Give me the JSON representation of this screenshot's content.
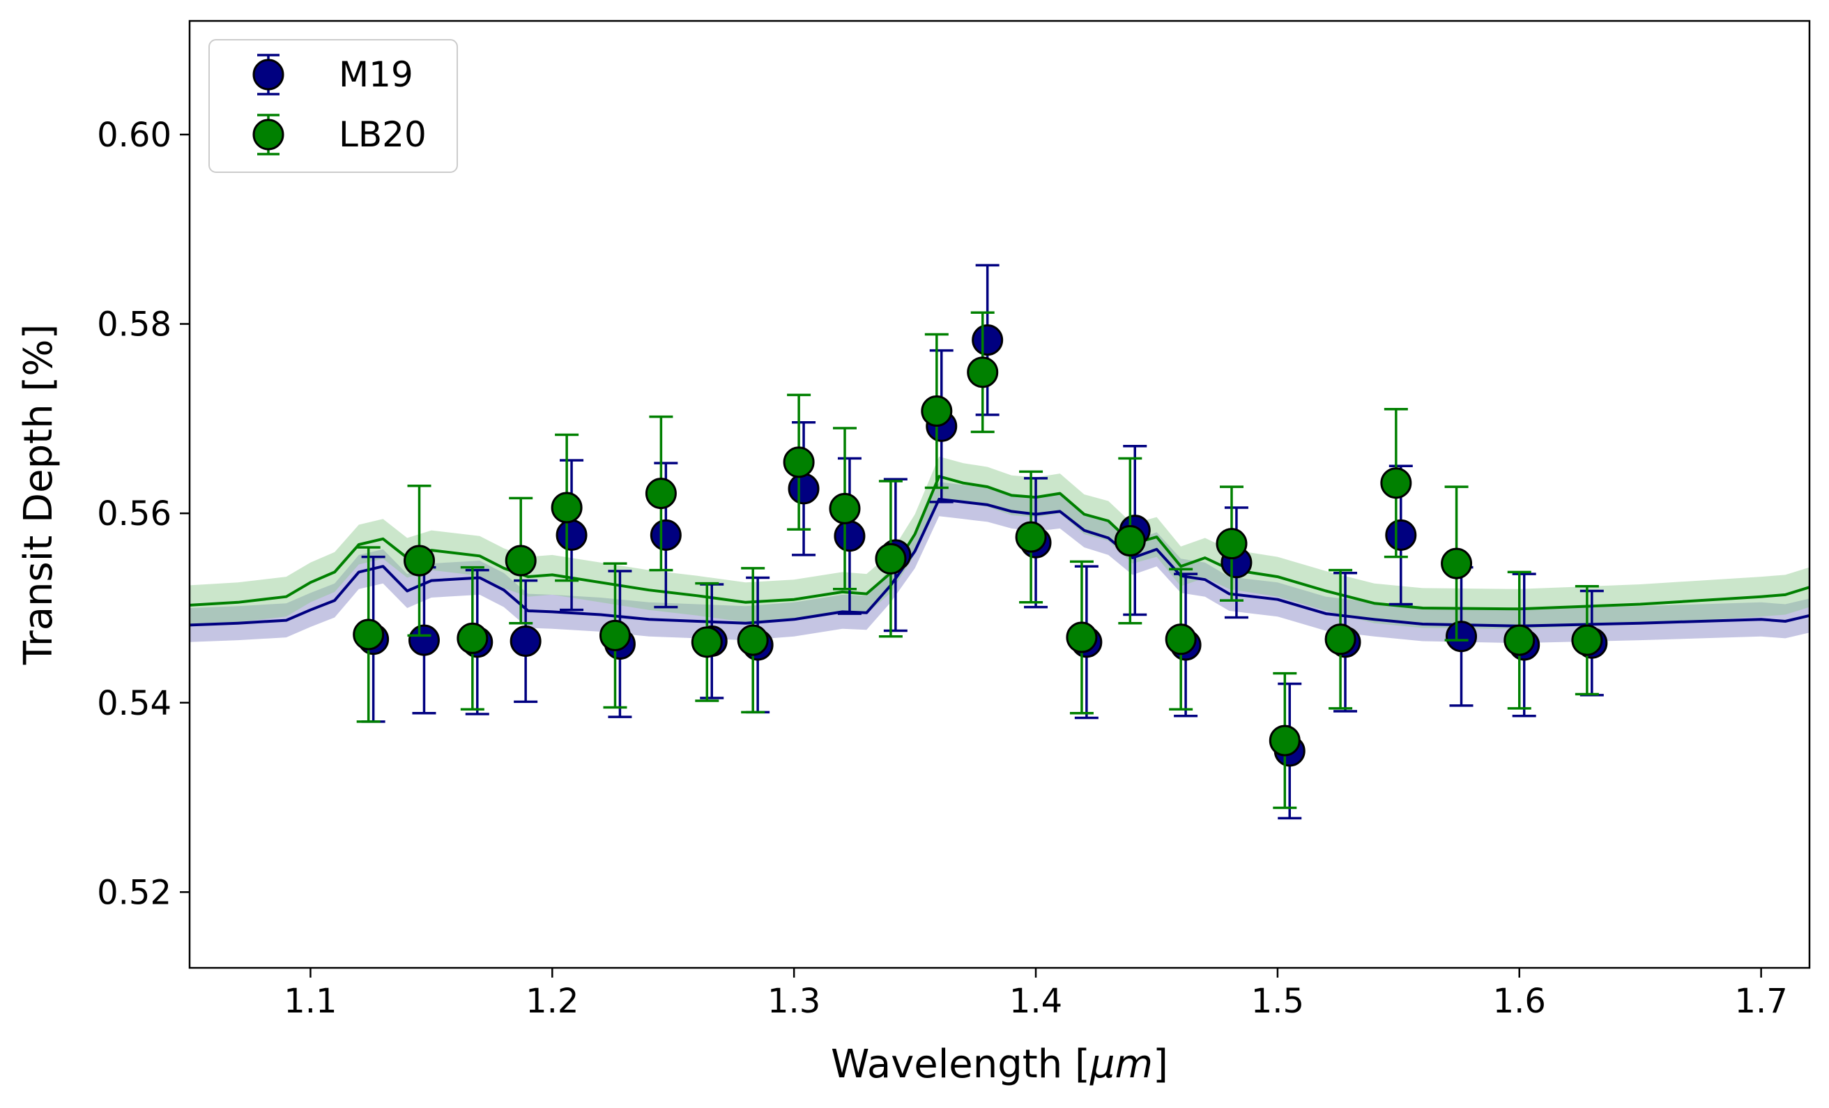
{
  "chart_data": {
    "type": "scatter",
    "title": "",
    "xlabel_parts": [
      "Wavelength [",
      "μm",
      "]"
    ],
    "ylabel": "Transit Depth [%]",
    "xlim": [
      1.05,
      1.72
    ],
    "ylim": [
      0.512,
      0.612
    ],
    "xticks": [
      1.1,
      1.2,
      1.3,
      1.4,
      1.5,
      1.6,
      1.7
    ],
    "xtick_labels": [
      "1.1",
      "1.2",
      "1.3",
      "1.4",
      "1.5",
      "1.6",
      "1.7"
    ],
    "yticks": [
      0.52,
      0.54,
      0.56,
      0.58,
      0.6
    ],
    "ytick_labels": [
      "0.52",
      "0.54",
      "0.56",
      "0.58",
      "0.60"
    ],
    "grid": false,
    "legend_position": "top-left",
    "series": [
      {
        "name": "M19",
        "color": "#000080",
        "x": [
          1.126,
          1.147,
          1.169,
          1.189,
          1.208,
          1.228,
          1.247,
          1.266,
          1.285,
          1.304,
          1.323,
          1.342,
          1.361,
          1.38,
          1.4,
          1.421,
          1.441,
          1.462,
          1.483,
          1.505,
          1.528,
          1.551,
          1.576,
          1.602,
          1.63
        ],
        "y": [
          0.5467,
          0.5466,
          0.5464,
          0.5465,
          0.5577,
          0.5462,
          0.5577,
          0.5465,
          0.5461,
          0.5626,
          0.5576,
          0.5556,
          0.5692,
          0.5783,
          0.5569,
          0.5464,
          0.5582,
          0.5461,
          0.5548,
          0.5349,
          0.5464,
          0.5577,
          0.547,
          0.5461,
          0.5463
        ],
        "yerr": [
          0.0087,
          0.0077,
          0.0076,
          0.0064,
          0.0079,
          0.0077,
          0.0076,
          0.006,
          0.0071,
          0.007,
          0.0082,
          0.008,
          0.008,
          0.0079,
          0.0068,
          0.008,
          0.0089,
          0.0075,
          0.0058,
          0.0071,
          0.0073,
          0.0073,
          0.0073,
          0.0075,
          0.0055
        ]
      },
      {
        "name": "LB20",
        "color": "#008000",
        "x": [
          1.124,
          1.145,
          1.167,
          1.187,
          1.206,
          1.226,
          1.245,
          1.264,
          1.283,
          1.302,
          1.321,
          1.34,
          1.359,
          1.378,
          1.398,
          1.419,
          1.439,
          1.46,
          1.481,
          1.503,
          1.526,
          1.549,
          1.574,
          1.6,
          1.628
        ],
        "y": [
          0.5472,
          0.555,
          0.5468,
          0.555,
          0.5606,
          0.5471,
          0.5621,
          0.5464,
          0.5466,
          0.5654,
          0.5605,
          0.5552,
          0.5708,
          0.5749,
          0.5575,
          0.5469,
          0.5571,
          0.5467,
          0.5568,
          0.536,
          0.5467,
          0.5632,
          0.5547,
          0.5466,
          0.5466
        ],
        "yerr": [
          0.0092,
          0.0079,
          0.0075,
          0.0066,
          0.0077,
          0.0076,
          0.0081,
          0.0062,
          0.0076,
          0.0071,
          0.0085,
          0.0082,
          0.0081,
          0.0063,
          0.0069,
          0.008,
          0.0087,
          0.0074,
          0.006,
          0.0071,
          0.0073,
          0.0078,
          0.0081,
          0.0072,
          0.0057
        ]
      }
    ],
    "model_curves": [
      {
        "name": "M19 model",
        "color": "#000080",
        "band_color": "#7e7ec0",
        "x": [
          1.05,
          1.07,
          1.09,
          1.1,
          1.11,
          1.12,
          1.13,
          1.14,
          1.15,
          1.17,
          1.18,
          1.19,
          1.2,
          1.22,
          1.24,
          1.26,
          1.28,
          1.3,
          1.32,
          1.33,
          1.34,
          1.35,
          1.36,
          1.37,
          1.38,
          1.39,
          1.4,
          1.41,
          1.42,
          1.43,
          1.44,
          1.45,
          1.46,
          1.47,
          1.48,
          1.5,
          1.52,
          1.54,
          1.56,
          1.6,
          1.65,
          1.7,
          1.71,
          1.72
        ],
        "y": [
          0.5482,
          0.5484,
          0.5487,
          0.5498,
          0.5508,
          0.5538,
          0.5544,
          0.5518,
          0.5529,
          0.5532,
          0.5519,
          0.5497,
          0.5496,
          0.5493,
          0.5488,
          0.5486,
          0.5484,
          0.5488,
          0.5496,
          0.5495,
          0.5524,
          0.556,
          0.5615,
          0.5612,
          0.5609,
          0.5602,
          0.5599,
          0.5602,
          0.5582,
          0.5574,
          0.5553,
          0.5562,
          0.5534,
          0.553,
          0.5515,
          0.5509,
          0.5494,
          0.5488,
          0.5483,
          0.5481,
          0.5484,
          0.5488,
          0.5486,
          0.5492
        ],
        "band_halfwidth": 0.0018
      },
      {
        "name": "LB20 model",
        "color": "#008000",
        "band_color": "#8cc88c",
        "x": [
          1.05,
          1.07,
          1.09,
          1.1,
          1.11,
          1.12,
          1.13,
          1.14,
          1.15,
          1.17,
          1.18,
          1.19,
          1.2,
          1.22,
          1.24,
          1.26,
          1.28,
          1.3,
          1.32,
          1.33,
          1.34,
          1.35,
          1.36,
          1.37,
          1.38,
          1.39,
          1.4,
          1.41,
          1.42,
          1.43,
          1.44,
          1.45,
          1.46,
          1.47,
          1.48,
          1.5,
          1.52,
          1.54,
          1.56,
          1.6,
          1.65,
          1.7,
          1.71,
          1.72
        ],
        "y": [
          0.5503,
          0.5506,
          0.5512,
          0.5527,
          0.5538,
          0.5567,
          0.5573,
          0.5553,
          0.5561,
          0.5555,
          0.5542,
          0.5533,
          0.5535,
          0.5527,
          0.5519,
          0.5513,
          0.5506,
          0.5509,
          0.5517,
          0.5515,
          0.5537,
          0.5578,
          0.5639,
          0.5632,
          0.5628,
          0.5619,
          0.5617,
          0.5621,
          0.5599,
          0.5592,
          0.5568,
          0.5575,
          0.5544,
          0.5553,
          0.5541,
          0.5533,
          0.5518,
          0.5505,
          0.55,
          0.5499,
          0.5504,
          0.5512,
          0.5514,
          0.5522
        ],
        "band_halfwidth": 0.0021
      }
    ]
  }
}
